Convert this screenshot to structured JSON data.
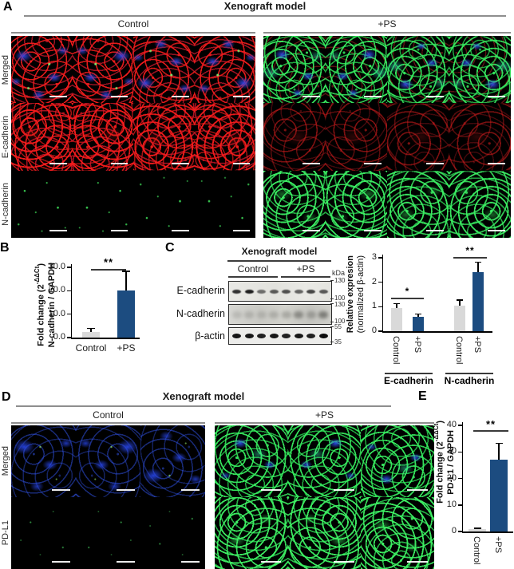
{
  "colors": {
    "bar_control": "#D9D9D9",
    "bar_ps": "#1C4C80",
    "header_line": "#8E8E8E",
    "axis": "#000000"
  },
  "panel_a": {
    "label": "A",
    "title": "Xenograft model",
    "columns": [
      "Control",
      "+PS"
    ],
    "rows": [
      "Merged",
      "E-cadherin",
      "N-cadherin"
    ]
  },
  "panel_b": {
    "label": "B"
  },
  "panel_c": {
    "label": "C",
    "title": "Xenograft model",
    "columns": [
      "Control",
      "+PS"
    ],
    "kda_unit": "kDa",
    "blots": [
      {
        "label": "E-cadherin",
        "marker_top": "130",
        "marker_bottom": "100"
      },
      {
        "label": "N-cadherin",
        "marker_top": "130",
        "marker_bottom": "100"
      },
      {
        "label": "β-actin",
        "marker_top": "55",
        "marker_bottom": "35"
      }
    ],
    "lanes_per_group": 4
  },
  "panel_d": {
    "label": "D",
    "title": "Xenograft model",
    "columns": [
      "Control",
      "+PS"
    ],
    "rows": [
      "Merged",
      "PD-L1"
    ]
  },
  "panel_e": {
    "label": "E"
  },
  "chart_data": [
    {
      "panel": "B",
      "type": "bar",
      "ylabel_line1": {
        "pre": "Fold change (2",
        "sup": "-ΔΔCt",
        "post": ")"
      },
      "ylabel_line2": "N-cadherin / GAPDH",
      "ylim": [
        0,
        30
      ],
      "yticks": [
        0,
        10,
        20,
        30
      ],
      "ytick_labels": [
        "0.0",
        "10.0",
        "20.0",
        "30.0"
      ],
      "categories": [
        "Control",
        "+PS"
      ],
      "values": [
        2.5,
        20.2
      ],
      "errors": [
        1.7,
        8.3
      ],
      "bar_colors": [
        "#D9D9D9",
        "#1C4C80"
      ],
      "significance": "**",
      "legend": "none",
      "grid": "off"
    },
    {
      "panel": "C",
      "type": "grouped-bar",
      "ylabel_line1": "Relative expresion",
      "ylabel_line2": "(normalized β-actin)",
      "ylim": [
        0,
        3
      ],
      "yticks": [
        0,
        1,
        2,
        3
      ],
      "ytick_labels": [
        "0",
        "1",
        "2",
        "3"
      ],
      "group_names": [
        "E-cadherin",
        "N-cadherin"
      ],
      "categories": [
        "Control",
        "+PS",
        "Control",
        "+PS"
      ],
      "values": [
        0.95,
        0.6,
        1.05,
        2.4
      ],
      "errors": [
        0.2,
        0.12,
        0.25,
        0.45
      ],
      "bar_colors": [
        "#D9D9D9",
        "#1C4C80",
        "#D9D9D9",
        "#1C4C80"
      ],
      "significance": [
        "*",
        "**"
      ],
      "legend": "none",
      "grid": "off"
    },
    {
      "panel": "E",
      "type": "bar",
      "ylabel_line1": {
        "pre": "Fold change (2",
        "sup": "-ΔΔCt",
        "post": ")"
      },
      "ylabel_line2": "PD-L1 / GAPDH",
      "ylim": [
        0,
        40
      ],
      "yticks": [
        0,
        10,
        20,
        30,
        40
      ],
      "ytick_labels": [
        "0",
        "10",
        "20",
        "30",
        "40"
      ],
      "categories": [
        "Control",
        "+PS"
      ],
      "values": [
        1.0,
        27.0
      ],
      "errors": [
        0.4,
        6.5
      ],
      "bar_colors": [
        "#D9D9D9",
        "#1C4C80"
      ],
      "significance": "**",
      "legend": "none",
      "grid": "off"
    }
  ]
}
